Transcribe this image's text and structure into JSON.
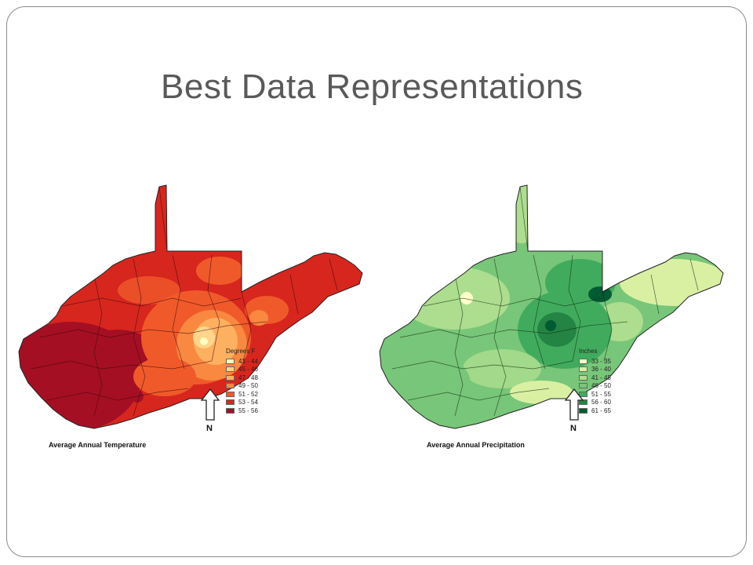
{
  "slide": {
    "title": "Best Data Representations"
  },
  "maps": {
    "temperature": {
      "caption": "Average Annual Temperature",
      "legend_title": "Degrees F",
      "north_label": "N",
      "classes": [
        {
          "label": "43 - 44",
          "color": "#ffffc0"
        },
        {
          "label": "45 - 46",
          "color": "#fed58a"
        },
        {
          "label": "47 - 48",
          "color": "#fdb060"
        },
        {
          "label": "49 - 50",
          "color": "#f98840"
        },
        {
          "label": "51 - 52",
          "color": "#f05a2a"
        },
        {
          "label": "53 - 54",
          "color": "#d7261e"
        },
        {
          "label": "55 - 56",
          "color": "#a50f24"
        }
      ]
    },
    "precipitation": {
      "caption": "Average Annual Precipitation",
      "legend_title": "Inches",
      "north_label": "N",
      "classes": [
        {
          "label": "33 - 35",
          "color": "#ffffcc"
        },
        {
          "label": "36 - 40",
          "color": "#d9f0a3"
        },
        {
          "label": "41 - 45",
          "color": "#addd8e"
        },
        {
          "label": "46 - 50",
          "color": "#78c679"
        },
        {
          "label": "51 - 55",
          "color": "#41ab5d"
        },
        {
          "label": "56 - 60",
          "color": "#238443"
        },
        {
          "label": "61 - 65",
          "color": "#005a32"
        }
      ]
    }
  }
}
